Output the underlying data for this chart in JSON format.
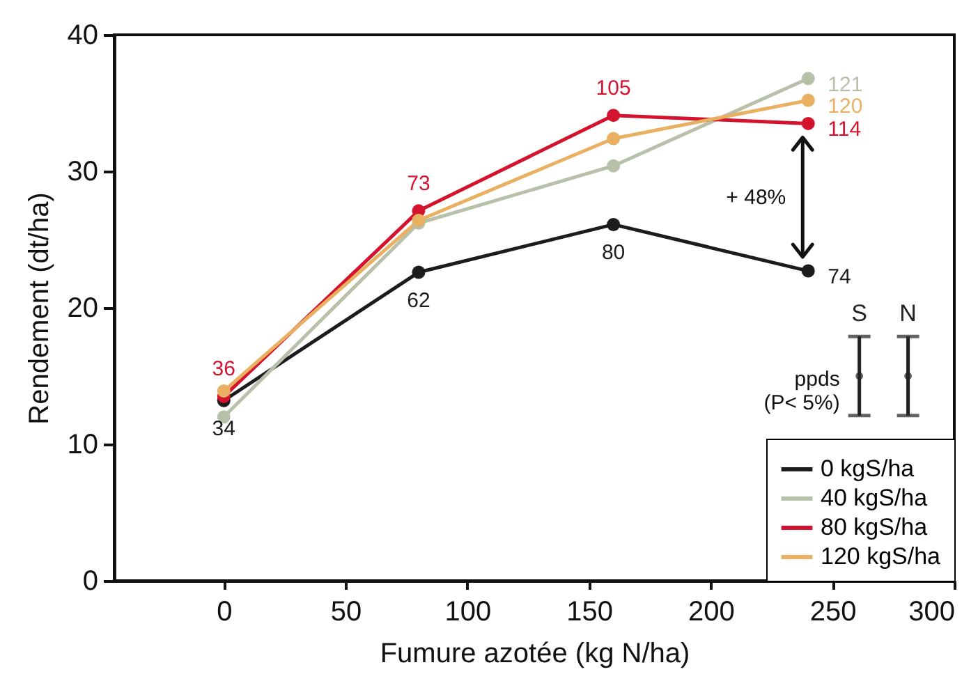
{
  "chart_data": {
    "type": "line",
    "xlabel": "Fumure azotée (kg N/ha)",
    "ylabel": "Rendement (dt/ha)",
    "xlim": [
      -45,
      300
    ],
    "ylim": [
      0,
      40
    ],
    "xticks": [
      0,
      50,
      100,
      150,
      200,
      250,
      300
    ],
    "yticks": [
      0,
      10,
      20,
      30,
      40
    ],
    "x": [
      0,
      80,
      160,
      240
    ],
    "marker": "circle",
    "line_style": "solid",
    "legend": "bottom right",
    "series": [
      {
        "name": "0 kgS/ha",
        "color": "#1c1c1c",
        "values": [
          13.2,
          22.6,
          26.1,
          22.7
        ]
      },
      {
        "name": "40 kgS/ha",
        "color": "#b9c0aa",
        "values": [
          12.0,
          26.2,
          30.4,
          36.8
        ]
      },
      {
        "name": "80 kgS/ha",
        "color": "#d4142e",
        "values": [
          13.5,
          27.1,
          34.1,
          33.5
        ]
      },
      {
        "name": "120 kgS/ha",
        "color": "#e8b060",
        "values": [
          13.9,
          26.4,
          32.4,
          35.2
        ]
      },
      {
        "name": "S",
        "type": "scatter",
        "x": [
          261
        ],
        "values": [
          15
        ],
        "errors": [
          2.9
        ],
        "color": "#222222"
      },
      {
        "name": "N",
        "type": "scatter",
        "x": [
          281
        ],
        "values": [
          15
        ],
        "errors": [
          2.9
        ],
        "color": "#222222"
      }
    ],
    "annotations": [
      "+ 48%",
      "ppds\n(P< 5%)",
      {
        "text": "34",
        "x": 0,
        "y": 13.2
      },
      {
        "text": "62",
        "x": 80,
        "y": 22.6
      },
      {
        "text": "80",
        "x": 160,
        "y": 26.1
      },
      {
        "text": "74",
        "x": 240,
        "y": 22.7
      },
      {
        "text": "121",
        "x": 240,
        "y": 36.8
      },
      {
        "text": "36",
        "x": 0,
        "y": 13.5
      },
      {
        "text": "73",
        "x": 80,
        "y": 27.1
      },
      {
        "text": "105",
        "x": 160,
        "y": 34.1
      },
      {
        "text": "114",
        "x": 240,
        "y": 33.5
      },
      {
        "text": "120",
        "x": 240,
        "y": 35.2
      }
    ]
  }
}
